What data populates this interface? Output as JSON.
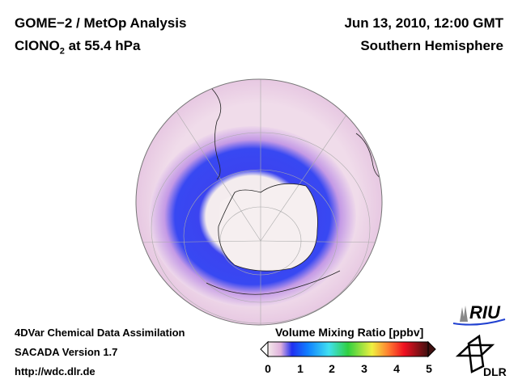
{
  "header": {
    "title_line1": "GOME−2 / MetOp Analysis",
    "species": "ClONO",
    "species_sub": "2",
    "level": " at 55.4 hPa",
    "date": "Jun 13, 2010, 12:00 GMT",
    "region": "Southern Hemisphere"
  },
  "footer": {
    "line1": "4DVar Chemical Data Assimilation",
    "line2": "SACADA Version 1.7",
    "line3": "http://wdc.dlr.de"
  },
  "colorbar": {
    "title": "Volume Mixing Ratio [ppbv]",
    "ticks": [
      "0",
      "1",
      "2",
      "3",
      "4",
      "5"
    ],
    "range": [
      0,
      5
    ],
    "colors": [
      "#f3eaea",
      "#e8b8e0",
      "#2030f0",
      "#1080ff",
      "#40e0f0",
      "#30d040",
      "#f0f040",
      "#ff8030",
      "#f01020",
      "#401010"
    ]
  },
  "logos": {
    "riu": "RIU",
    "dlr": "DLR"
  }
}
